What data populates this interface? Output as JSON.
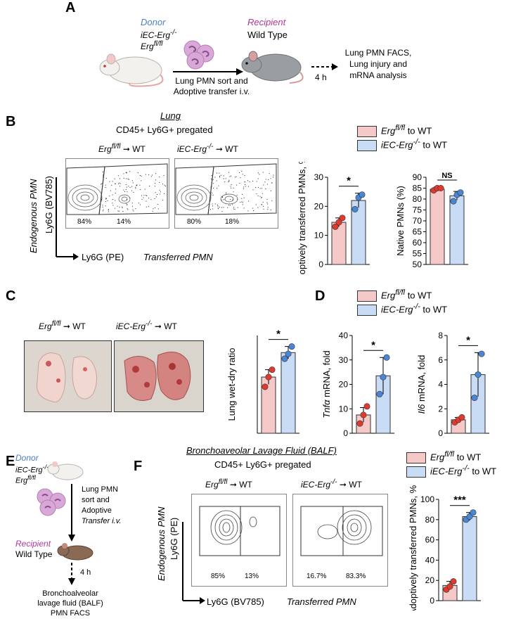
{
  "panels": {
    "A": "A",
    "B": "B",
    "C": "C",
    "D": "D",
    "E": "E",
    "F": "F"
  },
  "colors": {
    "erg_flfl": "#f6c9c9",
    "iec_erg": "#c8dcf5",
    "dot_red": "#e03a2f",
    "dot_blue": "#4a86d6",
    "donor": "#4a7fc0",
    "recipient": "#b3379a",
    "mouse_recipient": "#8a6a55"
  },
  "icons": [
    "mouse-white-icon",
    "mouse-gray-icon",
    "mouse-brown-icon",
    "neutrophil-cells-icon",
    "arrow-icon"
  ],
  "A": {
    "donor_label": "Donor",
    "donor_line1": "iEC-Erg",
    "donor_line1_sup": "-/-",
    "donor_line2": "Erg",
    "donor_line2_sup": "fl/fl",
    "recipient_label": "Recipient",
    "recipient_type": "Wild Type",
    "transfer_line1": "Lung PMN sort and",
    "transfer_line2": "Adoptive transfer i.v.",
    "time": "4 h",
    "outcome_line1": "Lung PMN FACS,",
    "outcome_line2": "Lung injury and",
    "outcome_line3": "mRNA analysis"
  },
  "B": {
    "tissue": "Lung",
    "gating": "CD45+ Ly6G+ pregated",
    "facs1_title": "Erg",
    "facs1_title_sup": "fl/fl",
    "facs1_target": "WT",
    "facs2_title": "iEC-Erg",
    "facs2_title_sup": "-/-",
    "facs2_target": "WT",
    "facs1_left": "84%",
    "facs1_right": "14%",
    "facs2_left": "80%",
    "facs2_right": "18%",
    "y_axis": "Ly6G (BV785)",
    "y_axis_italic": "Endogenous PMN",
    "x_axis": "Ly6G (PE)",
    "x_axis_italic": "Transferred PMN"
  },
  "legend": {
    "item1": "Erg",
    "item1_sup": "fl/fl",
    "item1_suffix": " to WT",
    "item2": "iEC-Erg",
    "item2_sup": "-/-",
    "item2_suffix": " to WT"
  },
  "C": {
    "photo1_title": "Erg",
    "photo1_sup": "fl/fl",
    "photo1_target": "WT",
    "photo2_title": "iEC-Erg",
    "photo2_sup": "-/-",
    "photo2_target": "WT"
  },
  "E": {
    "donor_label": "Donor",
    "donor_line1": "iEC-Erg",
    "donor_line1_sup": "-/-",
    "donor_line2": "Erg",
    "donor_line2_sup": "fl/fl",
    "transfer_line1": "Lung PMN",
    "transfer_line2": "sort and",
    "transfer_line3": "Adoptive",
    "transfer_line4": "Transfer i.v.",
    "recipient_label": "Recipient",
    "recipient_type": "Wild Type",
    "time": "4 h",
    "outcome_line1": "Bronchoalveolar",
    "outcome_line2": "lavage fluid (BALF)",
    "outcome_line3": "PMN FACS"
  },
  "F": {
    "tissue": "Bronchoaveolar Lavage Fluid (BALF)",
    "gating": "CD45+ Ly6G+ pregated",
    "facs1_title": "Erg",
    "facs1_title_sup": "fl/fl",
    "facs1_target": "WT",
    "facs2_title": "iEC-Erg",
    "facs2_title_sup": "-/-",
    "facs2_target": "WT",
    "facs1_left": "85%",
    "facs1_right": "13%",
    "facs2_left": "16.7%",
    "facs2_right": "83.3%",
    "y_axis": "Ly6G (PE)",
    "y_axis_italic": "Endogenous PMN",
    "x_axis": "Ly6G (BV785)",
    "x_axis_italic": "Transferred PMN"
  },
  "chart_data": [
    {
      "id": "B1",
      "type": "bar",
      "categories": [
        "Erg fl/fl to WT",
        "iEC-Erg-/- to WT"
      ],
      "values": [
        14.5,
        22
      ],
      "errors": [
        1.5,
        2.5
      ],
      "points": [
        [
          13,
          14.5,
          16
        ],
        [
          19,
          23,
          24
        ]
      ],
      "ylabel": "Adoptively transferred PMNs, %",
      "ylim": [
        0,
        30
      ],
      "yticks": [
        0,
        10,
        20,
        30
      ],
      "significance": "*"
    },
    {
      "id": "B2",
      "type": "bar",
      "categories": [
        "Erg fl/fl to WT",
        "iEC-Erg-/- to WT"
      ],
      "values": [
        84.5,
        81.5
      ],
      "errors": [
        1,
        2
      ],
      "points": [
        [
          84,
          85,
          85
        ],
        [
          79,
          82,
          83
        ]
      ],
      "ylabel": "Native PMNs (%)",
      "ylim": [
        50,
        90
      ],
      "yticks": [
        50,
        55,
        60,
        65,
        70,
        75,
        80,
        85,
        90
      ],
      "significance": "NS"
    },
    {
      "id": "C1",
      "type": "bar",
      "categories": [
        "Erg fl/fl to WT",
        "iEC-Erg-/- to WT"
      ],
      "values": [
        4.6,
        6.6
      ],
      "errors": [
        0.6,
        0.5
      ],
      "points": [
        [
          3.8,
          4.6,
          5.2
        ],
        [
          6.1,
          6.5,
          7.1
        ]
      ],
      "ylabel": "Lung wet-dry ratio",
      "ylim": [
        0,
        8
      ],
      "yticks": [],
      "significance": "*"
    },
    {
      "id": "D1",
      "type": "bar",
      "categories": [
        "Erg fl/fl to WT",
        "iEC-Erg-/- to WT"
      ],
      "values": [
        7.5,
        23.5
      ],
      "errors": [
        3,
        7.5
      ],
      "points": [
        [
          4,
          7.5,
          11
        ],
        [
          16,
          23,
          31
        ]
      ],
      "ylabel_italic": "Tnfα",
      "ylabel": " mRNA, fold",
      "ylim": [
        0,
        40
      ],
      "yticks": [
        0,
        10,
        20,
        30,
        40
      ],
      "significance": "*"
    },
    {
      "id": "D2",
      "type": "bar",
      "categories": [
        "Erg fl/fl to WT",
        "iEC-Erg-/- to WT"
      ],
      "values": [
        1.1,
        4.8
      ],
      "errors": [
        0.2,
        1.8
      ],
      "points": [
        [
          0.9,
          1.1,
          1.3
        ],
        [
          2.9,
          4.8,
          6.5
        ]
      ],
      "ylabel_italic": "Il6",
      "ylabel": " mRNA, fold",
      "ylim": [
        0,
        8
      ],
      "yticks": [
        0,
        2,
        4,
        6,
        8
      ],
      "significance": "*"
    },
    {
      "id": "F1",
      "type": "bar",
      "categories": [
        "Erg fl/fl to WT",
        "iEC-Erg-/- to WT"
      ],
      "values": [
        15,
        83
      ],
      "errors": [
        4,
        4
      ],
      "points": [
        [
          11,
          14,
          19
        ],
        [
          80,
          83,
          87
        ]
      ],
      "ylabel": "Adoptively transferred PMNs, %",
      "ylim": [
        0,
        100
      ],
      "yticks": [
        0,
        20,
        40,
        60,
        80,
        100
      ],
      "significance": "***"
    }
  ]
}
